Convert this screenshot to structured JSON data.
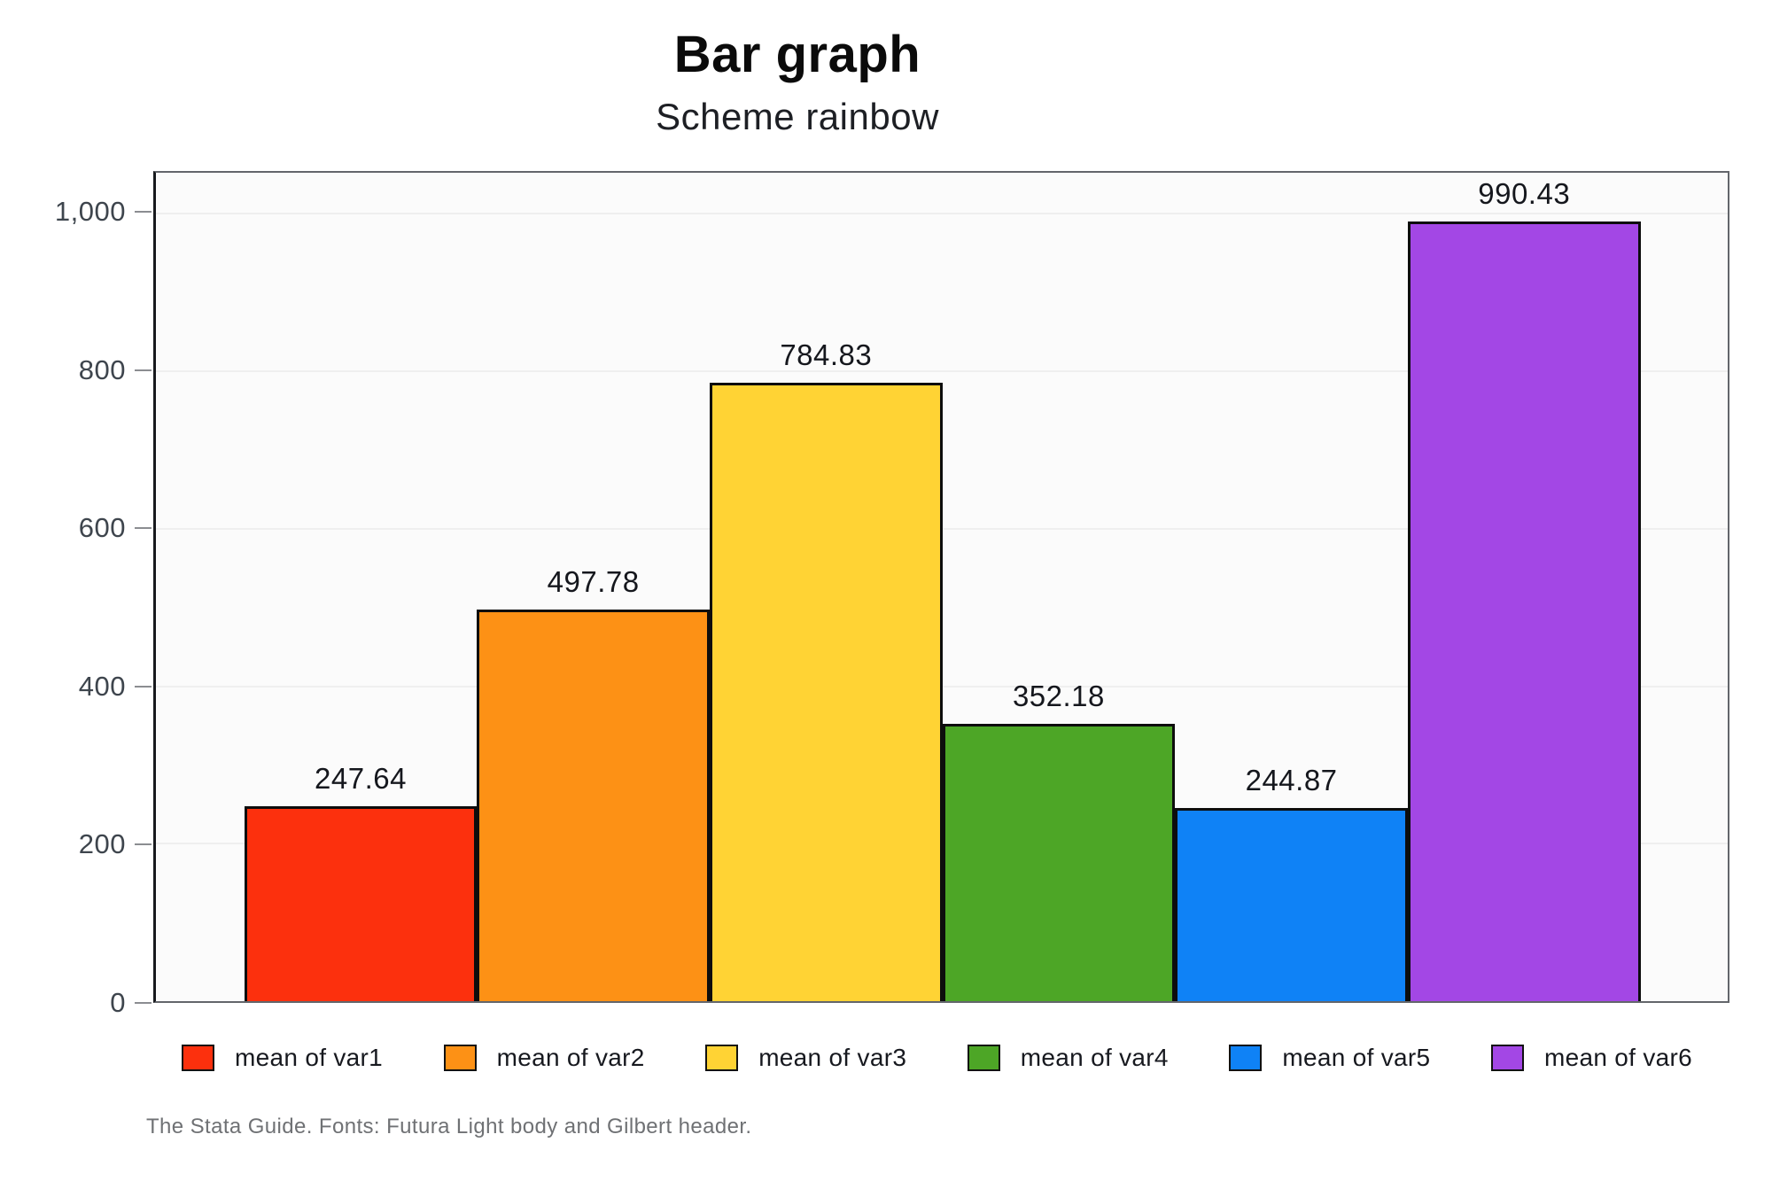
{
  "header": {
    "title": "Bar graph",
    "subtitle": "Scheme rainbow"
  },
  "caption": "The Stata Guide. Fonts: Futura Light body and Gilbert header.",
  "chart_data": {
    "type": "bar",
    "title": "Bar graph",
    "subtitle": "Scheme rainbow",
    "categories": [
      "mean of var1",
      "mean of var2",
      "mean of var3",
      "mean of var4",
      "mean of var5",
      "mean of var6"
    ],
    "values": [
      247.64,
      497.78,
      784.83,
      352.18,
      244.87,
      990.43
    ],
    "value_labels": [
      "247.64",
      "497.78",
      "784.83",
      "352.18",
      "244.87",
      "990.43"
    ],
    "bar_colors": [
      "#fc300d",
      "#fd9115",
      "#ffd334",
      "#4da626",
      "#0f82f6",
      "#a347e5"
    ],
    "xlabel": "",
    "ylabel": "",
    "ylim": [
      0,
      1052
    ],
    "yticks": [
      0,
      200,
      400,
      600,
      800,
      1000
    ],
    "ytick_labels": [
      "0",
      "200",
      "400",
      "600",
      "800",
      "1,000"
    ],
    "grid": true,
    "gridline_values": [
      200,
      400,
      600,
      800,
      1000
    ],
    "legend_position": "bottom",
    "plot_background": "#fbfbfb"
  }
}
